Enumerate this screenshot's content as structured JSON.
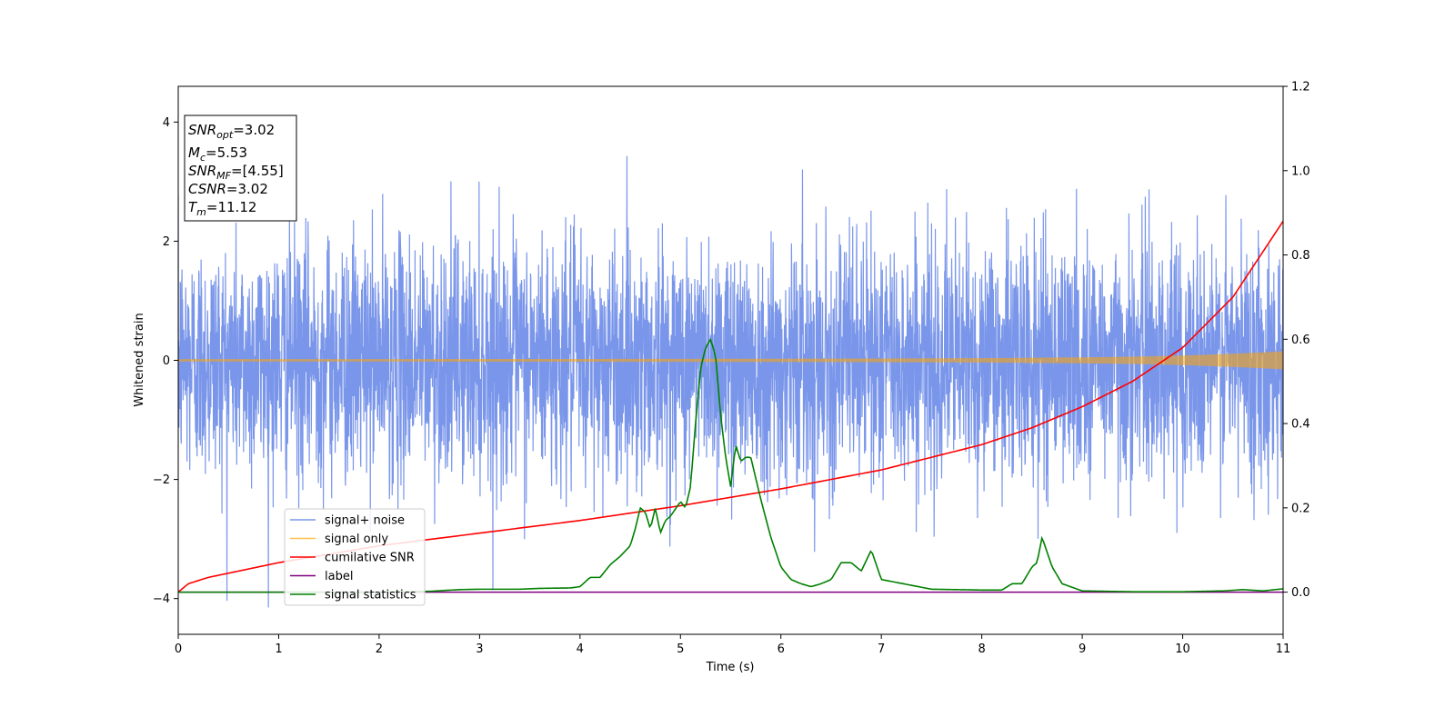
{
  "chart_data": {
    "type": "line",
    "title": "",
    "xlabel": "Time (s)",
    "ylabel": "Whitened strain",
    "y2label": "",
    "xlim": [
      0,
      11
    ],
    "ylim": [
      -4.6,
      4.6
    ],
    "y2lim": [
      -0.1,
      1.2
    ],
    "xticks": [
      "0",
      "1",
      "2",
      "3",
      "4",
      "5",
      "6",
      "7",
      "8",
      "9",
      "10",
      "11"
    ],
    "yticks": [
      "−4",
      "−2",
      "0",
      "2",
      "4"
    ],
    "y2ticks": [
      "0.0",
      "0.2",
      "0.4",
      "0.6",
      "0.8",
      "1.0",
      "1.2"
    ],
    "grid": false,
    "legend_position": "lower-left",
    "info_box": {
      "snr_opt": "=3.02",
      "mc": "=5.53",
      "snr_mf": "=[4.55]",
      "csnr": "=3.02",
      "tm": "=11.12"
    },
    "series": [
      {
        "name": "signal+ noise",
        "axis": "left",
        "color": "#4169e1",
        "description_values": "white noise, std ≈ 1, min ≈ -4.2, max ≈ 4.2",
        "std": 1.0
      },
      {
        "name": "signal only",
        "axis": "left",
        "color": "#ffa500",
        "envelope_x": [
          0,
          2,
          4,
          6,
          7,
          8,
          9,
          9.5,
          10,
          10.5,
          11
        ],
        "envelope_y": [
          0.02,
          0.02,
          0.022,
          0.026,
          0.03,
          0.036,
          0.05,
          0.06,
          0.08,
          0.11,
          0.15
        ]
      },
      {
        "name": "cumilative SNR",
        "axis": "right",
        "color": "#ff0000",
        "x": [
          0,
          0.1,
          0.3,
          0.5,
          1,
          1.5,
          2,
          3,
          4,
          5,
          6,
          7,
          7.5,
          8,
          8.5,
          9,
          9.5,
          10,
          10.5,
          11
        ],
        "values": [
          0.0,
          0.02,
          0.035,
          0.045,
          0.07,
          0.09,
          0.11,
          0.14,
          0.17,
          0.205,
          0.245,
          0.29,
          0.32,
          0.35,
          0.39,
          0.44,
          0.5,
          0.58,
          0.7,
          0.88
        ]
      },
      {
        "name": "label",
        "axis": "right",
        "color": "#800080",
        "x": [
          0,
          11
        ],
        "values": [
          0.0,
          0.0
        ]
      },
      {
        "name": "signal statistics",
        "axis": "right",
        "color": "#008000",
        "x": [
          0,
          1,
          2,
          2.5,
          2.8,
          3,
          3.4,
          3.6,
          3.9,
          4.0,
          4.1,
          4.2,
          4.3,
          4.4,
          4.5,
          4.55,
          4.6,
          4.65,
          4.7,
          4.75,
          4.8,
          4.85,
          4.9,
          5.0,
          5.05,
          5.1,
          5.15,
          5.2,
          5.25,
          5.3,
          5.35,
          5.4,
          5.45,
          5.5,
          5.55,
          5.6,
          5.65,
          5.7,
          5.8,
          5.9,
          6.0,
          6.1,
          6.2,
          6.3,
          6.4,
          6.5,
          6.6,
          6.7,
          6.8,
          6.9,
          7.0,
          7.5,
          8.0,
          8.2,
          8.3,
          8.4,
          8.5,
          8.55,
          8.6,
          8.7,
          8.8,
          9.0,
          9.5,
          10.0,
          10.4,
          10.6,
          10.8,
          11.0
        ],
        "values": [
          0.0,
          0.0,
          0.0,
          0.002,
          0.006,
          0.007,
          0.007,
          0.009,
          0.01,
          0.013,
          0.035,
          0.035,
          0.065,
          0.085,
          0.11,
          0.15,
          0.2,
          0.19,
          0.15,
          0.2,
          0.14,
          0.17,
          0.18,
          0.215,
          0.2,
          0.25,
          0.4,
          0.53,
          0.58,
          0.6,
          0.56,
          0.42,
          0.32,
          0.25,
          0.35,
          0.31,
          0.32,
          0.32,
          0.22,
          0.13,
          0.06,
          0.03,
          0.02,
          0.013,
          0.02,
          0.03,
          0.07,
          0.07,
          0.05,
          0.1,
          0.03,
          0.007,
          0.005,
          0.005,
          0.02,
          0.02,
          0.06,
          0.07,
          0.13,
          0.06,
          0.02,
          0.003,
          0.001,
          0.001,
          0.003,
          0.006,
          0.003,
          0.008
        ]
      }
    ]
  }
}
